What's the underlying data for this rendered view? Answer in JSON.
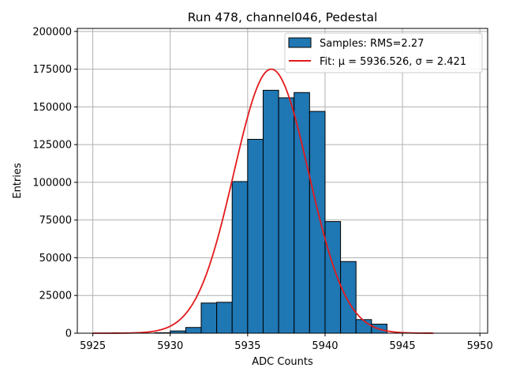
{
  "chart_data": {
    "type": "bar",
    "title": "Run 478, channel046, Pedestal",
    "xlabel": "ADC Counts",
    "ylabel": "Entries",
    "xlim": [
      5924,
      5950.5
    ],
    "ylim": [
      0,
      202000
    ],
    "xticks": [
      5925,
      5930,
      5935,
      5940,
      5945,
      5950
    ],
    "yticks": [
      0,
      25000,
      50000,
      75000,
      100000,
      125000,
      150000,
      175000,
      200000
    ],
    "grid": true,
    "legend_position": "top-right",
    "bin_edges": [
      5929,
      5930,
      5931,
      5932,
      5933,
      5934,
      5935,
      5936,
      5937,
      5938,
      5939,
      5940,
      5941,
      5942,
      5943,
      5944
    ],
    "bin_counts": [
      300,
      1500,
      3800,
      20000,
      20500,
      100500,
      128500,
      161000,
      156000,
      159500,
      147000,
      74000,
      47500,
      9000,
      6000,
      1000
    ],
    "hist_color": "#1f77b4",
    "fit": {
      "mu": 5936.526,
      "sigma": 2.421,
      "amplitude": 175000,
      "x_range": [
        5925,
        5947
      ],
      "color": "#e31a1c"
    },
    "legend": [
      {
        "label": "Samples: RMS=2.27",
        "kind": "patch",
        "color": "#1f77b4"
      },
      {
        "label": "Fit: μ = 5936.526, σ = 2.421",
        "kind": "line",
        "color": "#e31a1c"
      }
    ]
  }
}
